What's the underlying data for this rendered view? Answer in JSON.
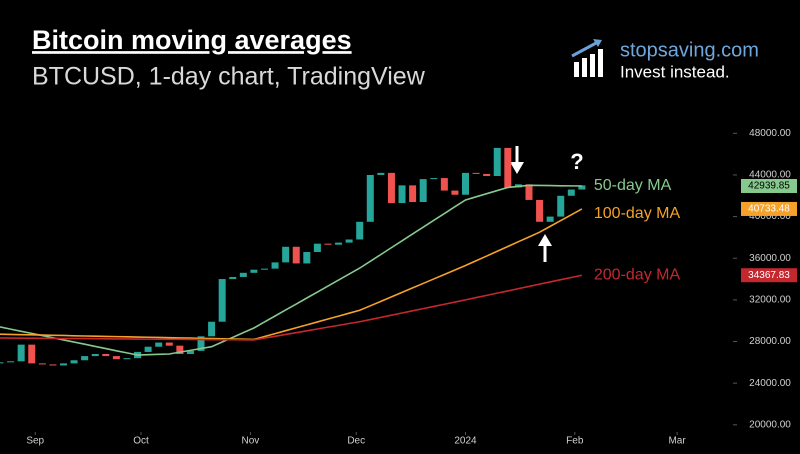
{
  "header": {
    "brand": "stopsaving.com",
    "tagline": "Invest instead."
  },
  "chart_data": {
    "type": "candlestick",
    "title": "Bitcoin moving averages",
    "subtitle": "BTCUSD, 1-day chart, TradingView",
    "annotations": [
      "?"
    ],
    "open": [
      25900,
      26000,
      26100,
      27700,
      25900,
      25800,
      25700,
      25900,
      26200,
      26600,
      26800,
      26600,
      26300,
      26400,
      27000,
      27500,
      27900,
      27600,
      26800,
      27100,
      28500,
      29900,
      34000,
      34200,
      34600,
      34900,
      35000,
      35600,
      37100,
      35500,
      36600,
      37400,
      37300,
      37500,
      37800,
      39500,
      44000,
      44200,
      41300,
      43000,
      41400,
      43600,
      43700,
      42500,
      42100,
      44200,
      44100,
      43900,
      46600,
      42800,
      43100,
      41600,
      39500,
      40000,
      42000,
      42600
    ],
    "close": [
      26000,
      26100,
      27700,
      25900,
      25800,
      25700,
      25900,
      26200,
      26600,
      26800,
      26600,
      26300,
      26400,
      27000,
      27500,
      27900,
      27600,
      26800,
      27100,
      28500,
      29900,
      34000,
      34200,
      34600,
      34900,
      35000,
      35600,
      37100,
      35500,
      36600,
      37400,
      37300,
      37500,
      37800,
      39500,
      44000,
      44200,
      41300,
      43000,
      41400,
      43600,
      43700,
      42500,
      42100,
      44200,
      44100,
      43900,
      46600,
      42800,
      43100,
      41600,
      39500,
      40000,
      42000,
      42600,
      43000
    ],
    "up_color": "#26a69a",
    "down_color": "#ef5350",
    "series": [
      {
        "name": "50-day MA",
        "color": "#86c98e",
        "values": [
          29400,
          29190,
          28980,
          28780,
          28570,
          28360,
          28150,
          27950,
          27740,
          27530,
          27320,
          27110,
          26910,
          26700,
          26730,
          26770,
          26800,
          26980,
          27150,
          27330,
          27500,
          27950,
          28400,
          28850,
          29300,
          29880,
          30450,
          31030,
          31600,
          32180,
          32750,
          33330,
          33900,
          34480,
          35050,
          35700,
          36360,
          37020,
          37670,
          38330,
          38980,
          39640,
          40290,
          40950,
          41600,
          41900,
          42200,
          42500,
          42800,
          42900,
          43000,
          42990,
          42980,
          42960,
          42950,
          42939.85
        ]
      },
      {
        "name": "100-day MA",
        "color": "#f5a12a",
        "values": [
          28700,
          28680,
          28660,
          28640,
          28620,
          28600,
          28580,
          28550,
          28530,
          28510,
          28490,
          28470,
          28450,
          28430,
          28410,
          28390,
          28370,
          28350,
          28330,
          28300,
          28280,
          28260,
          28240,
          28220,
          28200,
          28480,
          28760,
          29040,
          29320,
          29600,
          29880,
          30160,
          30440,
          30720,
          31000,
          31430,
          31860,
          32290,
          32720,
          33150,
          33580,
          34010,
          34440,
          34870,
          35300,
          35760,
          36210,
          36670,
          37130,
          37590,
          38040,
          38500,
          39060,
          39620,
          40170,
          40733.48
        ]
      },
      {
        "name": "200-day MA",
        "color": "#c4282e",
        "values": [
          28340,
          28330,
          28320,
          28320,
          28310,
          28300,
          28290,
          28280,
          28280,
          28270,
          28260,
          28250,
          28250,
          28240,
          28230,
          28220,
          28210,
          28210,
          28200,
          28190,
          28180,
          28170,
          28170,
          28160,
          28150,
          28330,
          28500,
          28680,
          28850,
          29030,
          29200,
          29380,
          29550,
          29730,
          29900,
          30110,
          30320,
          30530,
          30740,
          30950,
          31160,
          31370,
          31580,
          31790,
          32000,
          32220,
          32430,
          32650,
          32860,
          33080,
          33290,
          33510,
          33720,
          33940,
          34150,
          34367.83
        ]
      }
    ],
    "xlim": [
      0,
      69
    ],
    "xticks": [
      {
        "value": 3.33,
        "label": "Sep"
      },
      {
        "value": 13.33,
        "label": "Oct"
      },
      {
        "value": 23.67,
        "label": "Nov"
      },
      {
        "value": 33.67,
        "label": "Dec"
      },
      {
        "value": 44,
        "label": "2024"
      },
      {
        "value": 54.33,
        "label": "Feb"
      },
      {
        "value": 64,
        "label": "Mar"
      }
    ],
    "ylim": [
      19500,
      51200
    ],
    "yticks": [
      {
        "value": 20000,
        "label": "20000.00"
      },
      {
        "value": 24000,
        "label": "24000.00"
      },
      {
        "value": 28000,
        "label": "28000.00"
      },
      {
        "value": 32000,
        "label": "32000.00"
      },
      {
        "value": 36000,
        "label": "36000.00"
      },
      {
        "value": 40000,
        "label": "40000.00"
      },
      {
        "value": 44000,
        "label": "44000.00"
      },
      {
        "value": 48000,
        "label": "48000.00"
      }
    ]
  }
}
